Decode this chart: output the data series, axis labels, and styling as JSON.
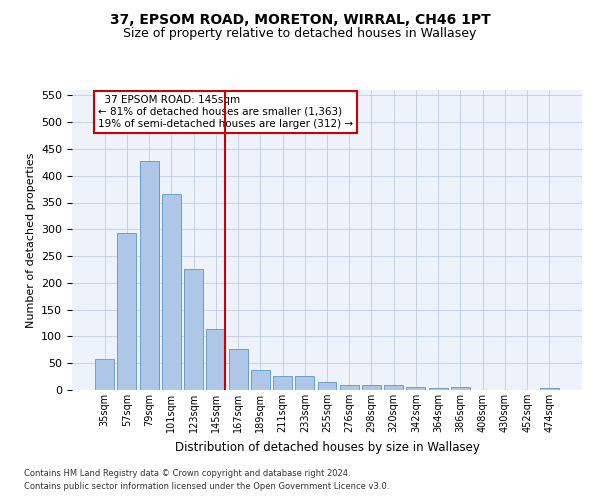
{
  "title": "37, EPSOM ROAD, MORETON, WIRRAL, CH46 1PT",
  "subtitle": "Size of property relative to detached houses in Wallasey",
  "xlabel": "Distribution of detached houses by size in Wallasey",
  "ylabel": "Number of detached properties",
  "categories": [
    "35sqm",
    "57sqm",
    "79sqm",
    "101sqm",
    "123sqm",
    "145sqm",
    "167sqm",
    "189sqm",
    "211sqm",
    "233sqm",
    "255sqm",
    "276sqm",
    "298sqm",
    "320sqm",
    "342sqm",
    "364sqm",
    "386sqm",
    "408sqm",
    "430sqm",
    "452sqm",
    "474sqm"
  ],
  "values": [
    57,
    293,
    428,
    365,
    225,
    113,
    76,
    38,
    27,
    27,
    15,
    10,
    10,
    10,
    5,
    3,
    6,
    0,
    0,
    0,
    4
  ],
  "bar_color": "#aec6e8",
  "bar_edge_color": "#5a96c8",
  "highlight_index": 5,
  "highlight_line_color": "#cc0000",
  "ylim": [
    0,
    560
  ],
  "yticks": [
    0,
    50,
    100,
    150,
    200,
    250,
    300,
    350,
    400,
    450,
    500,
    550
  ],
  "annotation_text": "  37 EPSOM ROAD: 145sqm\n← 81% of detached houses are smaller (1,363)\n19% of semi-detached houses are larger (312) →",
  "annotation_box_color": "#ffffff",
  "annotation_box_edge": "#cc0000",
  "footer_line1": "Contains HM Land Registry data © Crown copyright and database right 2024.",
  "footer_line2": "Contains public sector information licensed under the Open Government Licence v3.0.",
  "background_color": "#eef2fa",
  "title_fontsize": 10,
  "subtitle_fontsize": 9,
  "fig_width": 6.0,
  "fig_height": 5.0,
  "fig_dpi": 100
}
